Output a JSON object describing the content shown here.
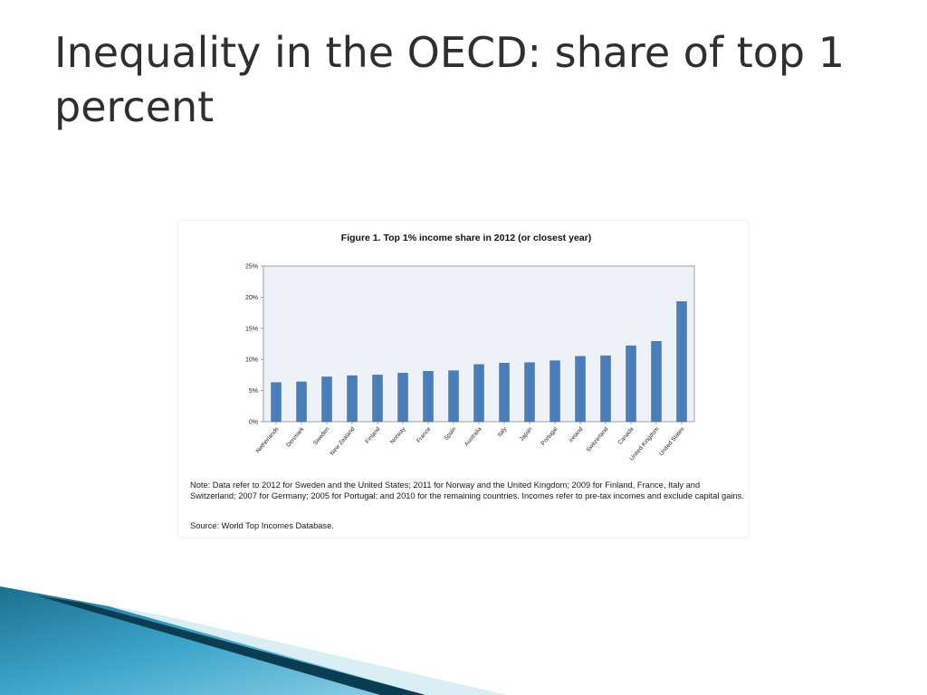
{
  "slide": {
    "title": "Inequality in the OECD: share of top 1 percent"
  },
  "figure": {
    "title": "Figure 1.  Top 1% income share in 2012 (or closest year)",
    "note": "Note: Data refer to 2012 for Sweden and the United States; 2011 for Norway and the United Kingdom; 2009 for Finland, France, Italy and Switzerland; 2007 for Germany; 2005 for Portugal; and 2010 for the remaining countries. Incomes refer to pre-tax incomes and exclude capital gains.",
    "source": "Source: World Top Incomes Database."
  },
  "chart_data": {
    "type": "bar",
    "title": "Figure 1.  Top 1% income share in 2012 (or closest year)",
    "xlabel": "",
    "ylabel": "",
    "ylim": [
      0,
      25
    ],
    "yticks": [
      0,
      5,
      10,
      15,
      20,
      25
    ],
    "ytick_labels": [
      "0%",
      "5%",
      "10%",
      "15%",
      "20%",
      "25%"
    ],
    "grid": false,
    "legend": "none",
    "bar_color": "#4a7ebb",
    "plot_background": "#eef1f7",
    "categories": [
      "Netherlands",
      "Denmark",
      "Sweden",
      "New Zealand",
      "Finland",
      "Norway",
      "France",
      "Spain",
      "Australia",
      "Italy",
      "Japan",
      "Portugal",
      "Ireland",
      "Switzerland",
      "Canada",
      "United Kingdom",
      "United States"
    ],
    "values": [
      6.3,
      6.4,
      7.2,
      7.4,
      7.5,
      7.8,
      8.1,
      8.2,
      9.2,
      9.4,
      9.5,
      9.8,
      10.5,
      10.6,
      12.2,
      12.9,
      19.3
    ]
  },
  "decoration": {
    "accent_dark": "#0b3d52",
    "accent_mid": "#2a8fb5",
    "accent_light": "#bfe3ef"
  }
}
